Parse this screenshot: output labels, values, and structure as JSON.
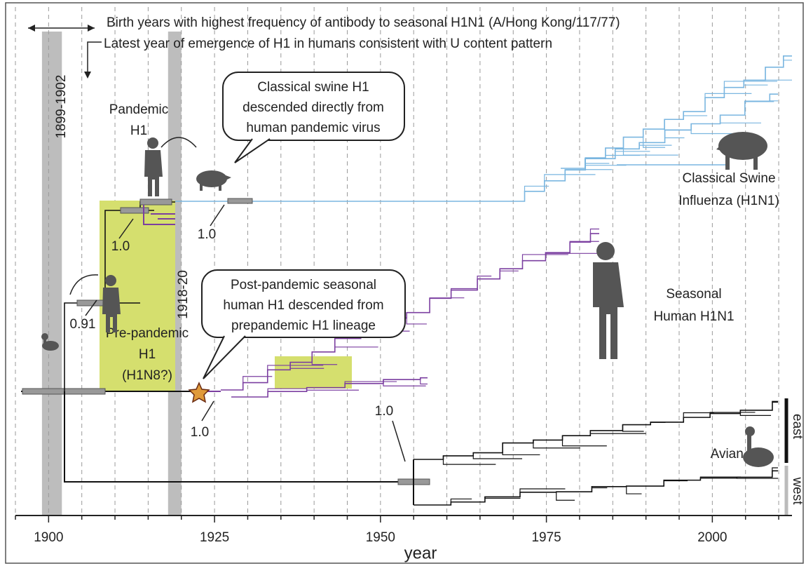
{
  "header": [
    "Birth years with highest frequency of antibody to seasonal H1N1 (A/Hong Kong/117/77)",
    "Latest year of emergence of H1 in humans consistent with U content pattern"
  ],
  "callouts": [
    {
      "lines": [
        "Classical swine H1",
        "descended directly from",
        "human pandemic virus"
      ]
    },
    {
      "lines": [
        "Post-pandemic seasonal",
        "human H1 descended from",
        "prepandemic H1 lineage"
      ]
    }
  ],
  "clades": [
    {
      "lines": [
        "Pandemic",
        "H1"
      ]
    },
    {
      "lines": [
        "Pre-pandemic",
        "H1",
        "(H1N8?)"
      ]
    },
    {
      "lines": [
        "Classical Swine",
        "Influenza (H1N1)"
      ]
    },
    {
      "lines": [
        "Seasonal",
        "Human H1N1"
      ]
    },
    {
      "lines": [
        "Avian H1"
      ],
      "subclades": [
        "east",
        "west"
      ]
    }
  ],
  "support": [
    {
      "value": 1,
      "label": "1.0"
    },
    {
      "value": 1,
      "label": "1.0"
    },
    {
      "value": 0.91,
      "label": "0.91"
    },
    {
      "value": 1,
      "label": "1.0"
    },
    {
      "value": 1,
      "label": "1.0"
    }
  ],
  "chart_data": {
    "type": "timeline",
    "xlabel": "year",
    "xlim": [
      1895,
      2012
    ],
    "xticks": [
      1900,
      1925,
      1950,
      1975,
      2000
    ],
    "xminorticks": [
      1895,
      1905,
      1910,
      1915,
      1920,
      1930,
      1935,
      1940,
      1945,
      1955,
      1960,
      1965,
      1970,
      1980,
      1985,
      1990,
      1995,
      2005,
      2010
    ],
    "periods": [
      {
        "label": "1899-1902",
        "start": 1899,
        "end": 1902
      },
      {
        "label": "1918-20",
        "start": 1918,
        "end": 1920
      }
    ],
    "grid": true
  }
}
